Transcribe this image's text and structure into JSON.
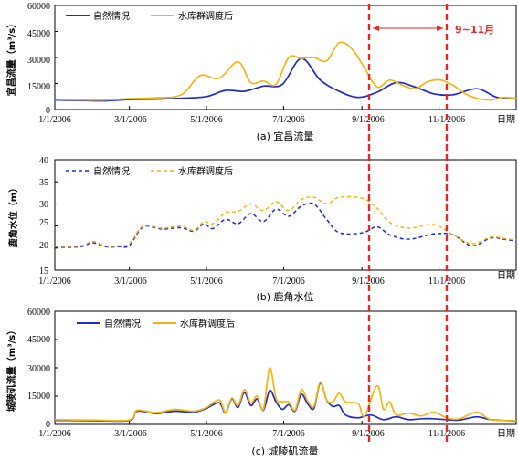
{
  "chart_data": [
    {
      "type": "line",
      "id": "yichang",
      "caption": "(a) 宜昌流量",
      "ylabel": "宜昌流量（m³/s）",
      "xlabel": "日期",
      "x_ticks": [
        "1/1/2006",
        "3/1/2006",
        "5/1/2006",
        "7/1/2006",
        "9/1/2006",
        "11/1/2006"
      ],
      "y_ticks": [
        "0",
        "15000",
        "30000",
        "45000",
        "60000"
      ],
      "ylim": [
        0,
        60000
      ],
      "x_unit": "day_of_year",
      "xlim": [
        0,
        365
      ],
      "legend_position": "top-left",
      "series": [
        {
          "name": "自然情况",
          "color": "#1f2bc9",
          "dash": "solid",
          "x": [
            0,
            20,
            40,
            59,
            80,
            100,
            120,
            135,
            150,
            165,
            180,
            195,
            210,
            225,
            240,
            255,
            270,
            285,
            300,
            315,
            334,
            350,
            365
          ],
          "y": [
            5500,
            5200,
            5000,
            5800,
            6000,
            6500,
            7500,
            11000,
            10500,
            13500,
            14500,
            29500,
            17000,
            10500,
            7000,
            10000,
            15500,
            13000,
            9000,
            8500,
            12000,
            7000,
            6500
          ]
        },
        {
          "name": "水库群调度后",
          "color": "#f2b60f",
          "dash": "solid",
          "x": [
            0,
            20,
            40,
            59,
            80,
            100,
            115,
            130,
            145,
            155,
            165,
            175,
            185,
            195,
            205,
            215,
            225,
            235,
            245,
            255,
            265,
            275,
            285,
            295,
            305,
            315,
            325,
            334,
            345,
            355,
            365
          ],
          "y": [
            6000,
            5500,
            5500,
            6200,
            6800,
            8500,
            19500,
            18000,
            27500,
            15500,
            16500,
            14500,
            30000,
            29500,
            30000,
            28000,
            38500,
            35000,
            24000,
            13000,
            17000,
            14000,
            12000,
            16000,
            17000,
            14000,
            9000,
            6500,
            5500,
            7000,
            6500
          ]
        }
      ],
      "annotation": {
        "label": "9~11月",
        "x_start": 243,
        "x_end": 304
      }
    },
    {
      "type": "line",
      "id": "lujiao",
      "caption": "(b) 鹿角水位",
      "ylabel": "鹿角水位（m）",
      "xlabel": "日期",
      "x_ticks": [
        "1/1/2006",
        "3/1/2006",
        "5/1/2006",
        "7/1/2006",
        "9/1/2006",
        "11/1/2006"
      ],
      "y_ticks": [
        "15",
        "20",
        "25",
        "30",
        "35",
        "40"
      ],
      "ylim": [
        15,
        40
      ],
      "x_unit": "day_of_year",
      "xlim": [
        0,
        365
      ],
      "legend_position": "top-left",
      "series": [
        {
          "name": "自然情况",
          "color": "#1f2bc9",
          "dash": "dashed",
          "x": [
            0,
            20,
            30,
            40,
            50,
            59,
            70,
            85,
            100,
            110,
            118,
            125,
            135,
            145,
            155,
            165,
            175,
            185,
            195,
            205,
            215,
            225,
            243,
            255,
            265,
            280,
            300,
            315,
            330,
            345,
            355,
            365
          ],
          "y": [
            20.2,
            20.3,
            21.2,
            20.3,
            20.3,
            20.6,
            24.8,
            24.3,
            24.6,
            23.8,
            25.5,
            24.4,
            26.5,
            25.5,
            27.8,
            26.0,
            28.8,
            27.2,
            29.5,
            30.0,
            26.5,
            23.5,
            23.4,
            24.8,
            23.0,
            22.0,
            23.2,
            23.0,
            20.5,
            22.3,
            22.0,
            21.6
          ]
        },
        {
          "name": "水库群调度后",
          "color": "#f2b60f",
          "dash": "dashed",
          "x": [
            0,
            20,
            30,
            40,
            50,
            59,
            70,
            85,
            100,
            110,
            118,
            125,
            135,
            145,
            155,
            165,
            175,
            185,
            195,
            205,
            215,
            225,
            243,
            255,
            265,
            280,
            300,
            315,
            330,
            345,
            355,
            365
          ],
          "y": [
            20.4,
            20.5,
            21.5,
            20.5,
            20.5,
            21.0,
            25.0,
            24.5,
            25.0,
            24.0,
            26.0,
            25.5,
            28.0,
            28.3,
            30.0,
            28.5,
            30.5,
            28.5,
            31.0,
            31.5,
            30.0,
            31.5,
            31.3,
            29.0,
            25.8,
            24.5,
            25.3,
            23.0,
            21.0,
            22.5,
            22.2,
            21.8
          ]
        }
      ],
      "annotation": {
        "x_start": 243,
        "x_end": 304
      }
    },
    {
      "type": "line",
      "id": "chenglingji",
      "caption": "(c) 城陵矶流量",
      "ylabel": "城陵矶流量（m³/s）",
      "xlabel": "日期",
      "x_ticks": [
        "1/1/2006",
        "3/1/2006",
        "5/1/2006",
        "7/1/2006",
        "9/1/2006",
        "11/1/2006"
      ],
      "y_ticks": [
        "0",
        "15000",
        "30000",
        "45000",
        "60000"
      ],
      "ylim": [
        0,
        60000
      ],
      "x_unit": "day_of_year",
      "xlim": [
        0,
        365
      ],
      "legend_position": "top-left",
      "series": [
        {
          "name": "自然情况",
          "color": "#1f2bc9",
          "dash": "solid",
          "x": [
            0,
            30,
            59,
            65,
            80,
            95,
            110,
            120,
            130,
            135,
            140,
            145,
            150,
            155,
            160,
            165,
            170,
            175,
            180,
            185,
            190,
            195,
            200,
            205,
            210,
            215,
            220,
            225,
            230,
            240,
            250,
            260,
            270,
            280,
            290,
            300,
            310,
            320,
            334,
            345,
            365
          ],
          "y": [
            2200,
            2000,
            2100,
            7000,
            5800,
            7000,
            6500,
            8500,
            11500,
            6000,
            13500,
            9000,
            17000,
            10000,
            13500,
            7500,
            18000,
            12000,
            8000,
            10500,
            7000,
            16000,
            11000,
            8500,
            22000,
            13000,
            9500,
            10000,
            5000,
            3500,
            5000,
            2500,
            4000,
            2500,
            3000,
            3000,
            2500,
            2300,
            4000,
            2500,
            1800
          ]
        },
        {
          "name": "水库群调度后",
          "color": "#f2b60f",
          "dash": "solid",
          "x": [
            0,
            30,
            59,
            65,
            80,
            95,
            110,
            120,
            130,
            135,
            140,
            145,
            150,
            155,
            160,
            165,
            170,
            175,
            180,
            185,
            190,
            195,
            200,
            205,
            210,
            215,
            220,
            225,
            230,
            240,
            245,
            255,
            260,
            265,
            270,
            280,
            290,
            300,
            310,
            320,
            334,
            345,
            365
          ],
          "y": [
            2500,
            2300,
            2300,
            7500,
            6200,
            8000,
            7000,
            9000,
            13000,
            6500,
            14000,
            10000,
            18500,
            11500,
            15000,
            8000,
            30000,
            14000,
            12000,
            12000,
            7500,
            18500,
            12500,
            9500,
            22500,
            13000,
            12000,
            16500,
            12000,
            11000,
            4500,
            20500,
            8000,
            12000,
            5000,
            6000,
            4500,
            6500,
            3500,
            3000,
            6500,
            2500,
            2000
          ]
        }
      ],
      "annotation": {
        "x_start": 243,
        "x_end": 304
      }
    }
  ]
}
